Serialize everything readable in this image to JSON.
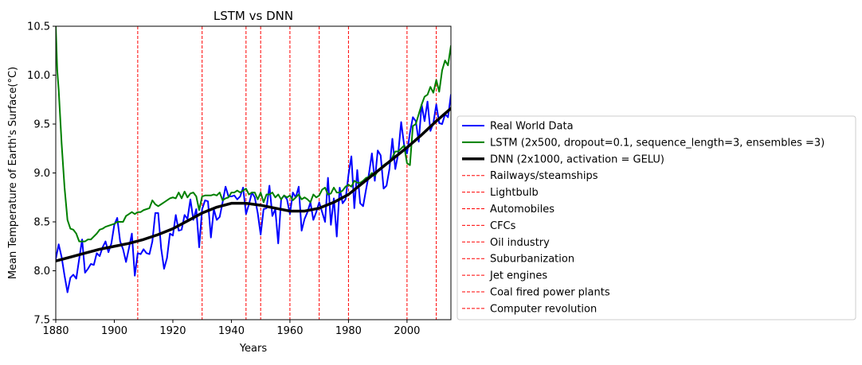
{
  "chart_data": {
    "type": "line",
    "title": "LSTM vs DNN",
    "xlabel": "Years",
    "ylabel": "Mean Temperature of Earth's Surface(°C)",
    "xlim": [
      1880,
      2015
    ],
    "ylim": [
      7.5,
      10.5
    ],
    "xticks": [
      1880,
      1900,
      1920,
      1940,
      1960,
      1980,
      2000
    ],
    "xtick_labels": [
      "1880",
      "1900",
      "1920",
      "1940",
      "1960",
      "1980",
      "2000"
    ],
    "yticks": [
      7.5,
      8.0,
      8.5,
      9.0,
      9.5,
      10.0,
      10.5
    ],
    "ytick_labels": [
      "7.5",
      "8.0",
      "8.5",
      "9.0",
      "9.5",
      "10.0",
      "10.5"
    ],
    "grid": false,
    "legend_position": "outside-right",
    "series": [
      {
        "name": "Real World Data",
        "color": "#0000ff",
        "style": "solid",
        "x": [
          1880,
          1881,
          1882,
          1883,
          1884,
          1885,
          1886,
          1887,
          1888,
          1889,
          1890,
          1891,
          1892,
          1893,
          1894,
          1895,
          1896,
          1897,
          1898,
          1899,
          1900,
          1901,
          1902,
          1903,
          1904,
          1905,
          1906,
          1907,
          1908,
          1909,
          1910,
          1911,
          1912,
          1913,
          1914,
          1915,
          1916,
          1917,
          1918,
          1919,
          1920,
          1921,
          1922,
          1923,
          1924,
          1925,
          1926,
          1927,
          1928,
          1929,
          1930,
          1931,
          1932,
          1933,
          1934,
          1935,
          1936,
          1937,
          1938,
          1939,
          1940,
          1941,
          1942,
          1943,
          1944,
          1945,
          1946,
          1947,
          1948,
          1949,
          1950,
          1951,
          1952,
          1953,
          1954,
          1955,
          1956,
          1957,
          1958,
          1959,
          1960,
          1961,
          1962,
          1963,
          1964,
          1965,
          1966,
          1967,
          1968,
          1969,
          1970,
          1971,
          1972,
          1973,
          1974,
          1975,
          1976,
          1977,
          1978,
          1979,
          1980,
          1981,
          1982,
          1983,
          1984,
          1985,
          1986,
          1987,
          1988,
          1989,
          1990,
          1991,
          1992,
          1993,
          1994,
          1995,
          1996,
          1997,
          1998,
          1999,
          2000,
          2001,
          2002,
          2003,
          2004,
          2005,
          2006,
          2007,
          2008,
          2009,
          2010,
          2011,
          2012,
          2013,
          2014,
          2015
        ],
        "values": [
          8.12,
          8.27,
          8.14,
          7.95,
          7.78,
          7.93,
          7.96,
          7.92,
          8.12,
          8.32,
          7.98,
          8.02,
          8.07,
          8.06,
          8.18,
          8.15,
          8.24,
          8.3,
          8.19,
          8.28,
          8.47,
          8.54,
          8.3,
          8.22,
          8.09,
          8.23,
          8.38,
          7.95,
          8.18,
          8.17,
          8.22,
          8.18,
          8.17,
          8.3,
          8.59,
          8.59,
          8.23,
          8.02,
          8.13,
          8.38,
          8.36,
          8.57,
          8.41,
          8.42,
          8.57,
          8.53,
          8.73,
          8.52,
          8.63,
          8.24,
          8.63,
          8.72,
          8.71,
          8.34,
          8.63,
          8.52,
          8.55,
          8.7,
          8.86,
          8.76,
          8.76,
          8.77,
          8.73,
          8.76,
          8.85,
          8.58,
          8.68,
          8.8,
          8.75,
          8.59,
          8.37,
          8.63,
          8.64,
          8.87,
          8.56,
          8.63,
          8.28,
          8.73,
          8.77,
          8.73,
          8.58,
          8.8,
          8.75,
          8.86,
          8.41,
          8.53,
          8.6,
          8.7,
          8.52,
          8.6,
          8.7,
          8.6,
          8.5,
          8.95,
          8.47,
          8.74,
          8.35,
          8.85,
          8.69,
          8.73,
          8.98,
          9.17,
          8.64,
          9.03,
          8.69,
          8.66,
          8.83,
          8.99,
          9.2,
          8.92,
          9.23,
          9.18,
          8.84,
          8.87,
          9.04,
          9.35,
          9.04,
          9.2,
          9.52,
          9.29,
          9.2,
          9.41,
          9.57,
          9.53,
          9.32,
          9.7,
          9.53,
          9.73,
          9.43,
          9.51,
          9.7,
          9.51,
          9.5,
          9.6,
          9.57,
          9.8
        ]
      },
      {
        "name": "LSTM (2x500, dropout=0.1, sequence_length=3, ensembles =3)",
        "color": "#008000",
        "style": "solid",
        "x": [
          1880,
          1880.5,
          1881,
          1882,
          1883,
          1884,
          1885,
          1886,
          1887,
          1888,
          1889,
          1890,
          1891,
          1892,
          1893,
          1894,
          1895,
          1896,
          1897,
          1898,
          1899,
          1900,
          1901,
          1902,
          1903,
          1904,
          1905,
          1906,
          1907,
          1908,
          1909,
          1910,
          1911,
          1912,
          1913,
          1914,
          1915,
          1916,
          1917,
          1918,
          1919,
          1920,
          1921,
          1922,
          1923,
          1924,
          1925,
          1926,
          1927,
          1928,
          1929,
          1930,
          1931,
          1932,
          1933,
          1934,
          1935,
          1936,
          1937,
          1938,
          1939,
          1940,
          1941,
          1942,
          1943,
          1944,
          1945,
          1946,
          1947,
          1948,
          1949,
          1950,
          1951,
          1952,
          1953,
          1954,
          1955,
          1956,
          1957,
          1958,
          1959,
          1960,
          1961,
          1962,
          1963,
          1964,
          1965,
          1966,
          1967,
          1968,
          1969,
          1970,
          1971,
          1972,
          1973,
          1974,
          1975,
          1976,
          1977,
          1978,
          1979,
          1980,
          1981,
          1982,
          1983,
          1984,
          1985,
          1986,
          1987,
          1988,
          1989,
          1990,
          1991,
          1992,
          1993,
          1994,
          1995,
          1996,
          1997,
          1998,
          1999,
          2000,
          2001,
          2002,
          2003,
          2004,
          2005,
          2006,
          2007,
          2008,
          2009,
          2010,
          2011,
          2012,
          2013,
          2014,
          2015
        ],
        "values": [
          10.5,
          10.05,
          9.85,
          9.3,
          8.85,
          8.52,
          8.43,
          8.42,
          8.38,
          8.3,
          8.3,
          8.3,
          8.32,
          8.32,
          8.35,
          8.38,
          8.42,
          8.43,
          8.45,
          8.46,
          8.47,
          8.48,
          8.5,
          8.5,
          8.5,
          8.56,
          8.58,
          8.6,
          8.58,
          8.6,
          8.6,
          8.62,
          8.63,
          8.64,
          8.72,
          8.68,
          8.66,
          8.68,
          8.7,
          8.72,
          8.74,
          8.75,
          8.74,
          8.8,
          8.74,
          8.81,
          8.75,
          8.79,
          8.8,
          8.76,
          8.62,
          8.76,
          8.77,
          8.77,
          8.77,
          8.78,
          8.77,
          8.8,
          8.72,
          8.74,
          8.75,
          8.8,
          8.8,
          8.82,
          8.8,
          8.82,
          8.84,
          8.78,
          8.8,
          8.8,
          8.73,
          8.8,
          8.7,
          8.78,
          8.78,
          8.8,
          8.75,
          8.78,
          8.73,
          8.77,
          8.75,
          8.77,
          8.72,
          8.75,
          8.78,
          8.73,
          8.75,
          8.73,
          8.7,
          8.78,
          8.75,
          8.77,
          8.83,
          8.85,
          8.78,
          8.79,
          8.85,
          8.8,
          8.8,
          8.82,
          8.86,
          8.88,
          8.86,
          8.92,
          8.9,
          8.9,
          8.92,
          8.95,
          8.96,
          9.0,
          8.97,
          9.02,
          9.05,
          9.08,
          9.1,
          9.1,
          9.16,
          9.22,
          9.22,
          9.25,
          9.28,
          9.1,
          9.08,
          9.48,
          9.5,
          9.6,
          9.7,
          9.78,
          9.8,
          9.88,
          9.82,
          9.95,
          9.83,
          10.05,
          10.15,
          10.1,
          10.3
        ]
      },
      {
        "name": "DNN (2x1000, activation = GELU)",
        "color": "#000000",
        "style": "solid",
        "x": [
          1880,
          1885,
          1890,
          1895,
          1900,
          1905,
          1910,
          1915,
          1920,
          1925,
          1930,
          1935,
          1940,
          1945,
          1950,
          1955,
          1960,
          1965,
          1970,
          1975,
          1980,
          1985,
          1990,
          1995,
          2000,
          2005,
          2010,
          2015
        ],
        "values": [
          8.1,
          8.14,
          8.18,
          8.22,
          8.25,
          8.28,
          8.32,
          8.37,
          8.43,
          8.51,
          8.59,
          8.65,
          8.69,
          8.69,
          8.67,
          8.64,
          8.61,
          8.61,
          8.64,
          8.7,
          8.78,
          8.9,
          9.02,
          9.14,
          9.26,
          9.39,
          9.53,
          9.66
        ]
      }
    ],
    "events": [
      {
        "name": "Railways/steamships",
        "year": 1908
      },
      {
        "name": "Lightbulb",
        "year": 1930
      },
      {
        "name": "Automobiles",
        "year": 1945
      },
      {
        "name": "CFCs",
        "year": 1950
      },
      {
        "name": "Oil industry",
        "year": 1960
      },
      {
        "name": "Suburbanization",
        "year": 1970
      },
      {
        "name": "Jet engines",
        "year": 1980
      },
      {
        "name": "Coal fired power plants",
        "year": 2000
      },
      {
        "name": "Computer revolution",
        "year": 2010
      }
    ],
    "event_color": "#ff0000",
    "event_style": "dashed"
  }
}
